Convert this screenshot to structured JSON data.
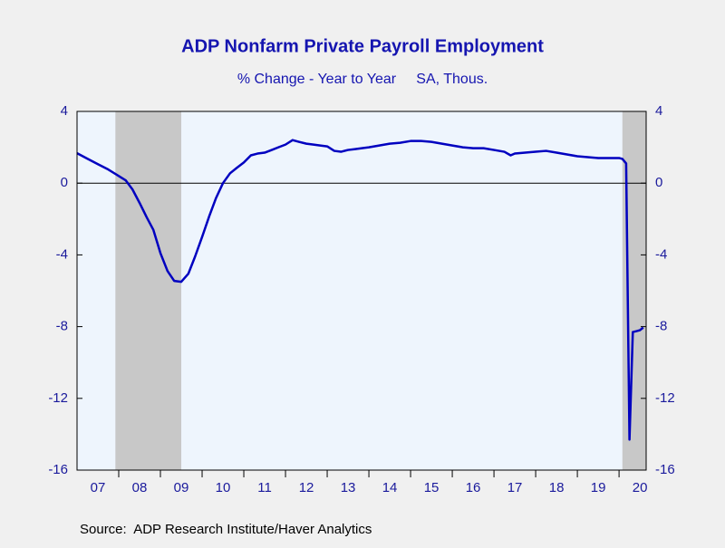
{
  "chart_data": {
    "type": "line",
    "title": "ADP Nonfarm Private Payroll Employment",
    "subtitle": "% Change - Year to Year     SA, Thous.",
    "source": "Source:  ADP Research Institute/Haver Analytics",
    "series": [
      {
        "name": "ADP Nonfarm Private Payroll Employment",
        "color": "#0000c0",
        "x": [
          2007.0,
          2007.25,
          2007.5,
          2007.75,
          2008.0,
          2008.17,
          2008.33,
          2008.5,
          2008.67,
          2008.83,
          2009.0,
          2009.17,
          2009.33,
          2009.5,
          2009.67,
          2009.83,
          2010.0,
          2010.17,
          2010.33,
          2010.5,
          2010.67,
          2010.83,
          2011.0,
          2011.17,
          2011.33,
          2011.5,
          2011.67,
          2011.83,
          2012.0,
          2012.17,
          2012.33,
          2012.5,
          2012.67,
          2012.83,
          2013.0,
          2013.17,
          2013.33,
          2013.5,
          2013.67,
          2013.83,
          2014.0,
          2014.25,
          2014.5,
          2014.75,
          2015.0,
          2015.25,
          2015.5,
          2015.75,
          2016.0,
          2016.25,
          2016.5,
          2016.75,
          2017.0,
          2017.25,
          2017.4,
          2017.5,
          2017.75,
          2018.0,
          2018.25,
          2018.5,
          2018.75,
          2019.0,
          2019.25,
          2019.5,
          2019.75,
          2020.0,
          2020.08,
          2020.17,
          2020.25,
          2020.33,
          2020.42,
          2020.5,
          2020.58
        ],
        "values": [
          1.67,
          1.36,
          1.06,
          0.76,
          0.4,
          0.15,
          -0.35,
          -1.1,
          -1.9,
          -2.6,
          -3.9,
          -4.9,
          -5.45,
          -5.5,
          -5.05,
          -4.1,
          -3.0,
          -1.85,
          -0.85,
          0,
          0.55,
          0.85,
          1.15,
          1.55,
          1.65,
          1.7,
          1.85,
          2.0,
          2.15,
          2.4,
          2.3,
          2.2,
          2.15,
          2.1,
          2.05,
          1.8,
          1.75,
          1.85,
          1.9,
          1.95,
          2.0,
          2.1,
          2.2,
          2.25,
          2.35,
          2.35,
          2.3,
          2.2,
          2.1,
          2.0,
          1.95,
          1.95,
          1.85,
          1.75,
          1.55,
          1.65,
          1.7,
          1.75,
          1.8,
          1.7,
          1.6,
          1.5,
          1.45,
          1.4,
          1.4,
          1.4,
          1.35,
          1.1,
          -14.3,
          -8.3,
          -8.25,
          -8.2,
          -8.05
        ]
      }
    ],
    "recessions": [
      [
        2007.92,
        2009.5
      ],
      [
        2020.08,
        2020.65
      ]
    ],
    "xlim": [
      2007,
      2020.65
    ],
    "xticks": [
      {
        "value": 2007.5,
        "label": "07"
      },
      {
        "value": 2008.5,
        "label": "08"
      },
      {
        "value": 2009.5,
        "label": "09"
      },
      {
        "value": 2010.5,
        "label": "10"
      },
      {
        "value": 2011.5,
        "label": "11"
      },
      {
        "value": 2012.5,
        "label": "12"
      },
      {
        "value": 2013.5,
        "label": "13"
      },
      {
        "value": 2014.5,
        "label": "14"
      },
      {
        "value": 2015.5,
        "label": "15"
      },
      {
        "value": 2016.5,
        "label": "16"
      },
      {
        "value": 2017.5,
        "label": "17"
      },
      {
        "value": 2018.5,
        "label": "18"
      },
      {
        "value": 2019.5,
        "label": "19"
      },
      {
        "value": 2020.5,
        "label": "20"
      }
    ],
    "ylim": [
      -16,
      4
    ],
    "yticks": [
      -16,
      -12,
      -8,
      -4,
      0,
      4
    ],
    "recession_color": "#c8c8c8",
    "plot_background": "#eef5fd"
  }
}
